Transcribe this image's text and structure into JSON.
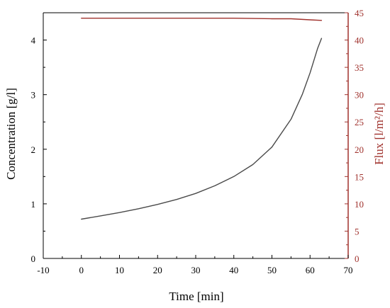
{
  "chart_data": {
    "type": "line",
    "xlabel": "Time [min]",
    "ylabel": "Concentration [g/l]",
    "y2label": "Flux [l/m²/h]",
    "xlim": [
      -10,
      70
    ],
    "ylim": [
      0,
      4.5
    ],
    "y2lim": [
      0,
      45
    ],
    "x_ticks": [
      -10,
      0,
      10,
      20,
      30,
      40,
      50,
      60,
      70
    ],
    "y_ticks": [
      0,
      1,
      2,
      3,
      4
    ],
    "y2_ticks": [
      0,
      5,
      10,
      15,
      20,
      25,
      30,
      35,
      40,
      45
    ],
    "grid": false,
    "legend": "none",
    "colors": {
      "concentration": "#4a4a4a",
      "flux": "#a0322d"
    },
    "series": [
      {
        "axis": "left",
        "x": [
          0,
          5,
          10,
          15,
          20,
          25,
          30,
          35,
          40,
          45,
          50,
          55,
          58,
          60,
          62,
          63
        ],
        "y": [
          0.72,
          0.78,
          0.84,
          0.91,
          0.99,
          1.08,
          1.19,
          1.33,
          1.5,
          1.72,
          2.04,
          2.55,
          3.01,
          3.4,
          3.85,
          4.03
        ]
      },
      {
        "axis": "right",
        "x": [
          0,
          10,
          20,
          30,
          40,
          50,
          55,
          60,
          63
        ],
        "y": [
          44.0,
          44.0,
          44.0,
          44.0,
          44.0,
          43.9,
          43.9,
          43.7,
          43.6
        ]
      }
    ]
  }
}
